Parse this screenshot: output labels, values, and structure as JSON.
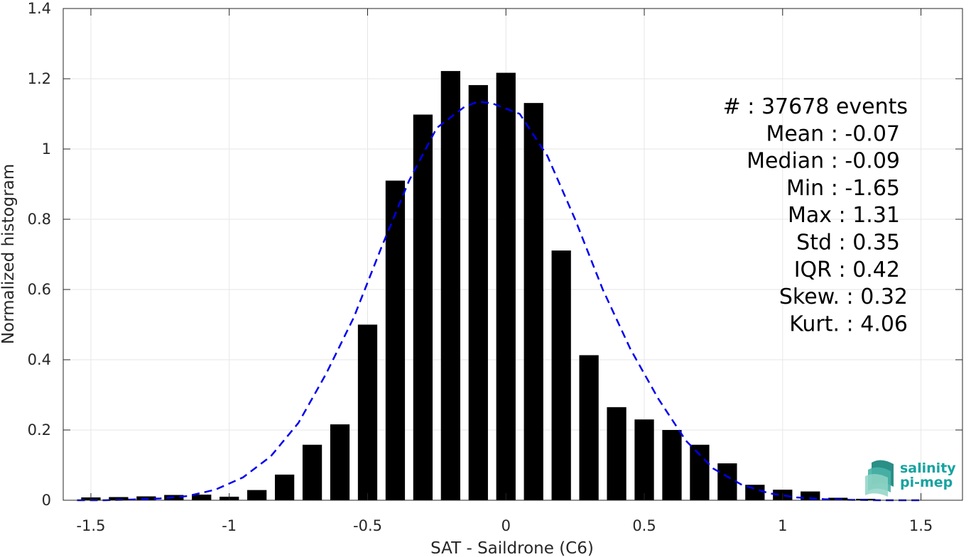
{
  "chart_data": {
    "type": "bar",
    "xlabel": "SAT - Saildrone (C6)",
    "ylabel": "Normalized histogram",
    "xlim": [
      -1.6,
      1.65
    ],
    "ylim": [
      0,
      1.4
    ],
    "xticks": [
      "-1.5",
      "-1",
      "-0.5",
      "0",
      "0.5",
      "1",
      "1.5"
    ],
    "xtick_values": [
      -1.5,
      -1,
      -0.5,
      0,
      0.5,
      1,
      1.5
    ],
    "yticks": [
      "0",
      "0.2",
      "0.4",
      "0.6",
      "0.8",
      "1",
      "1.2",
      "1.4"
    ],
    "ytick_values": [
      0,
      0.2,
      0.4,
      0.6,
      0.8,
      1.0,
      1.2,
      1.4
    ],
    "grid": true,
    "bar_color": "#000000",
    "bars": {
      "x": [
        -1.5,
        -1.4,
        -1.3,
        -1.2,
        -1.1,
        -1.0,
        -0.9,
        -0.8,
        -0.7,
        -0.6,
        -0.5,
        -0.4,
        -0.3,
        -0.2,
        -0.1,
        0.0,
        0.1,
        0.2,
        0.3,
        0.4,
        0.5,
        0.6,
        0.7,
        0.8,
        0.9,
        1.0,
        1.1,
        1.2,
        1.3
      ],
      "values": [
        0.008,
        0.009,
        0.011,
        0.015,
        0.016,
        0.01,
        0.029,
        0.073,
        0.158,
        0.216,
        0.5,
        0.91,
        1.098,
        1.222,
        1.182,
        1.217,
        1.131,
        0.711,
        0.413,
        0.265,
        0.23,
        0.2,
        0.158,
        0.105,
        0.044,
        0.03,
        0.025,
        0.007,
        0.004
      ]
    },
    "fit_curve": {
      "style": "dashed",
      "color": "#0000ee",
      "x": [
        -1.55,
        -1.45,
        -1.35,
        -1.25,
        -1.15,
        -1.05,
        -0.95,
        -0.85,
        -0.75,
        -0.65,
        -0.55,
        -0.45,
        -0.35,
        -0.25,
        -0.15,
        -0.1,
        -0.05,
        0.05,
        0.15,
        0.25,
        0.35,
        0.45,
        0.55,
        0.65,
        0.75,
        0.85,
        0.95,
        1.05,
        1.15,
        1.25,
        1.35,
        1.45,
        1.5
      ],
      "y": [
        0.0,
        0.0,
        0.002,
        0.005,
        0.012,
        0.03,
        0.065,
        0.125,
        0.22,
        0.36,
        0.52,
        0.72,
        0.91,
        1.06,
        1.12,
        1.135,
        1.13,
        1.1,
        0.98,
        0.8,
        0.6,
        0.43,
        0.29,
        0.17,
        0.09,
        0.045,
        0.02,
        0.008,
        0.003,
        0.001,
        0.0,
        0.0,
        0.0
      ]
    },
    "stats": [
      {
        "label": "#  : 37678 events"
      },
      {
        "label": "Mean : -0.07"
      },
      {
        "label": "Median : -0.09"
      },
      {
        "label": "Min : -1.65"
      },
      {
        "label": "Max : 1.31"
      },
      {
        "label": "Std : 0.35"
      },
      {
        "label": "IQR : 0.42"
      },
      {
        "label": "Skew. : 0.32"
      },
      {
        "label": "Kurt. : 4.06"
      }
    ]
  },
  "logo": {
    "line1": "salinity",
    "line2": "pi-mep",
    "color": "#17a3a0"
  }
}
